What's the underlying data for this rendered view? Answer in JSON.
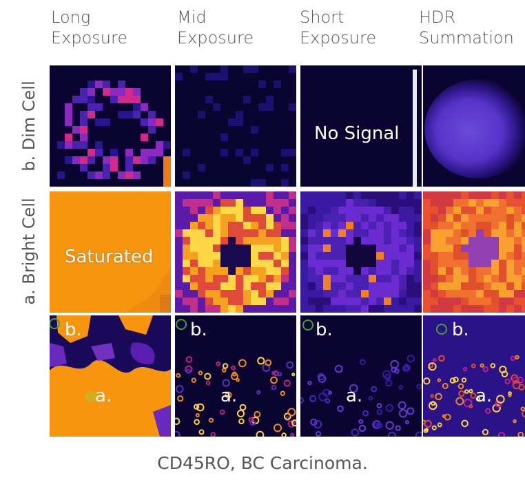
{
  "columns": [
    {
      "line1": "Long",
      "line2": "Exposure"
    },
    {
      "line1": "Mid",
      "line2": "Exposure"
    },
    {
      "line1": "Short",
      "line2": "Exposure"
    },
    {
      "line1": "HDR",
      "line2": "Summation"
    }
  ],
  "rows": [
    {
      "label": "b. Dim Cell"
    },
    {
      "label": "a. Bright Cell"
    }
  ],
  "overlays": {
    "no_signal": "No Signal",
    "saturated": "Saturated"
  },
  "markers": {
    "a": "a.",
    "b": "b."
  },
  "caption": "CD45RO, BC Carcinoma.",
  "colors": {
    "background": "#0a0530",
    "saturated": "#f7950e",
    "low": "#3a1aa8",
    "mid": "#c2208e",
    "high": "#ffd23a"
  }
}
